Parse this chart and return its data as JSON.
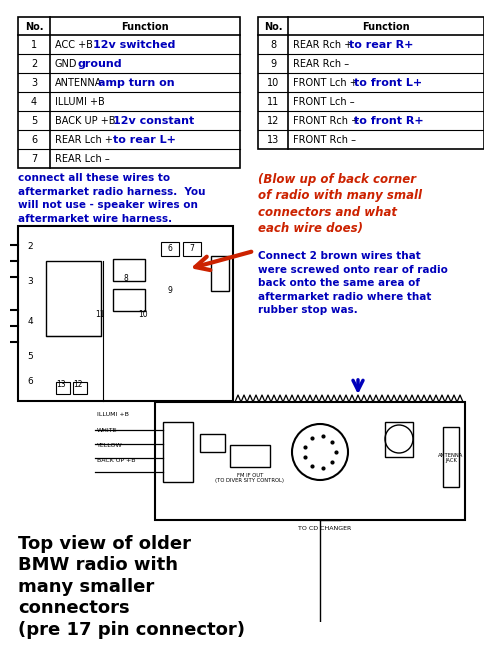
{
  "bg_color": "#ffffff",
  "left_table": {
    "rows": [
      [
        "1",
        "ACC +B",
        "12v switched"
      ],
      [
        "2",
        "GND",
        "ground"
      ],
      [
        "3",
        "ANTENNA",
        "amp turn on"
      ],
      [
        "4",
        "ILLUMI +B",
        ""
      ],
      [
        "5",
        "BACK UP +B",
        "12v constant"
      ],
      [
        "6",
        "REAR Lch +",
        "to rear L+"
      ],
      [
        "7",
        "REAR Lch –",
        ""
      ]
    ]
  },
  "right_table": {
    "rows": [
      [
        "8",
        "REAR Rch +",
        "to rear R+"
      ],
      [
        "9",
        "REAR Rch –",
        ""
      ],
      [
        "10",
        "FRONT Lch +",
        "to front L+"
      ],
      [
        "11",
        "FRONT Lch –",
        ""
      ],
      [
        "12",
        "FRONT Rch +",
        "to front R+"
      ],
      [
        "13",
        "FRONT Rch –",
        ""
      ]
    ]
  },
  "note_left": "connect all these wires to\naftermarket radio harness.  You\nwill not use - speaker wires on\naftermarket wire harness.",
  "note_right_1": "(Blow up of back corner\nof radio with many small\nconnectors and what\neach wire does)",
  "note_right_2": "Connect 2 brown wires that\nwere screwed onto rear of radio\nback onto the same area of\naftermarket radio where that\nrubber stop was.",
  "note_bottom": "Top view of older\nBMW radio with\nmany smaller\nconnectors\n(pre 17 pin connector)",
  "colors": {
    "blue": "#0000bb",
    "red": "#cc2200",
    "black": "#000000"
  }
}
